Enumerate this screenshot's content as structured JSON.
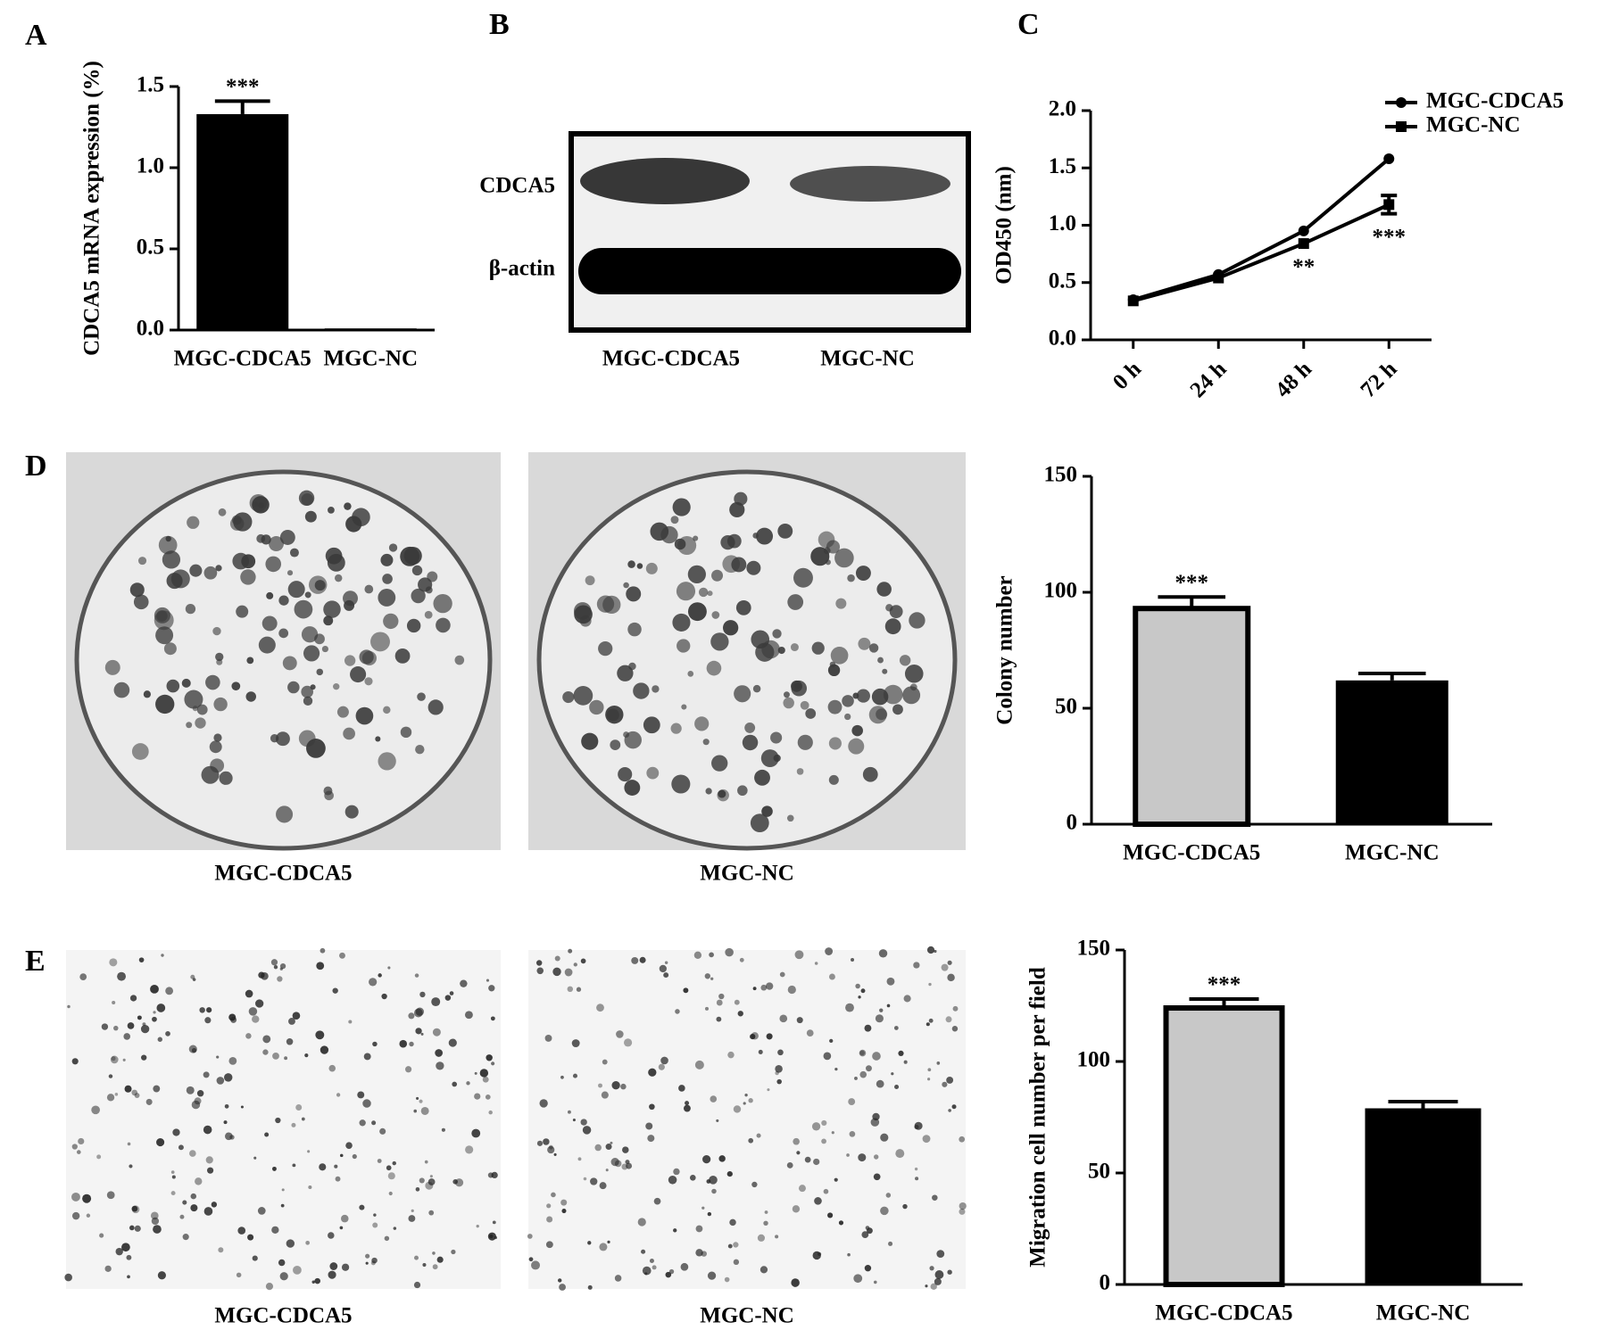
{
  "chart_data": [
    {
      "label": "A",
      "type": "bar",
      "ylabel": "CDCA5 mRNA expression (%)",
      "categories": [
        "MGC-CDCA5",
        "MGC-NC"
      ],
      "values": [
        1.33,
        0.01
      ],
      "errors": [
        0.08,
        null
      ],
      "value_annotations": [
        "***",
        null
      ],
      "colors": [
        "#000000",
        "#000000"
      ],
      "ylim": [
        0,
        1.5
      ],
      "yticks": [
        {
          "value": 0,
          "label": "0.0"
        },
        0.5,
        {
          "value": 1,
          "label": "1.0"
        },
        1.5
      ]
    },
    {
      "label": "C",
      "type": "line",
      "ylabel": "OD450 (nm)",
      "categories": [
        "0 h",
        "24 h",
        "48 h",
        "72 h"
      ],
      "series": [
        {
          "name": "MGC-CDCA5",
          "color": "#000000",
          "marker": "circle",
          "values": [
            0.35,
            0.57,
            0.95,
            1.58
          ],
          "errors": [
            null,
            null,
            null,
            null
          ],
          "value_annotations": [
            null,
            null,
            null,
            null
          ]
        },
        {
          "name": "MGC-NC",
          "color": "#000000",
          "marker": "square",
          "values": [
            0.34,
            0.54,
            0.84,
            1.18
          ],
          "errors": [
            null,
            null,
            null,
            0.08
          ],
          "value_annotations": [
            null,
            null,
            "**",
            "***"
          ]
        }
      ],
      "ylim": [
        0,
        2
      ],
      "yticks": [
        {
          "value": 0,
          "label": "0.0"
        },
        0.5,
        {
          "value": 1,
          "label": "1.0"
        },
        1.5,
        {
          "value": 2,
          "label": "2.0"
        }
      ]
    },
    {
      "type": "bar",
      "ylabel": "Colony number",
      "categories": [
        "MGC-CDCA5",
        "MGC-NC"
      ],
      "values": [
        93,
        62
      ],
      "errors": [
        5,
        3
      ],
      "value_annotations": [
        "***",
        null
      ],
      "colors": [
        "#c8c8c8",
        "#000000"
      ],
      "ylim": [
        0,
        150
      ],
      "yticks": [
        0,
        50,
        100,
        150
      ]
    },
    {
      "type": "bar",
      "ylabel": "Migration cell number per field",
      "categories": [
        "MGC-CDCA5",
        "MGC-NC"
      ],
      "values": [
        124,
        79
      ],
      "errors": [
        4,
        3
      ],
      "value_annotations": [
        "***",
        null
      ],
      "colors": [
        "#c8c8c8",
        "#000000"
      ],
      "ylim": [
        0,
        150
      ],
      "yticks": [
        0,
        50,
        100,
        150
      ]
    }
  ],
  "blot": {
    "label": "B",
    "bands": [
      "CDCA5",
      "β-actin"
    ],
    "lanes": [
      "MGC-CDCA5",
      "MGC-NC"
    ]
  },
  "photos": [
    {
      "label": "D",
      "captions": [
        "MGC-CDCA5",
        "MGC-NC"
      ]
    },
    {
      "label": "E",
      "captions": [
        "MGC-CDCA5",
        "MGC-NC"
      ]
    }
  ]
}
